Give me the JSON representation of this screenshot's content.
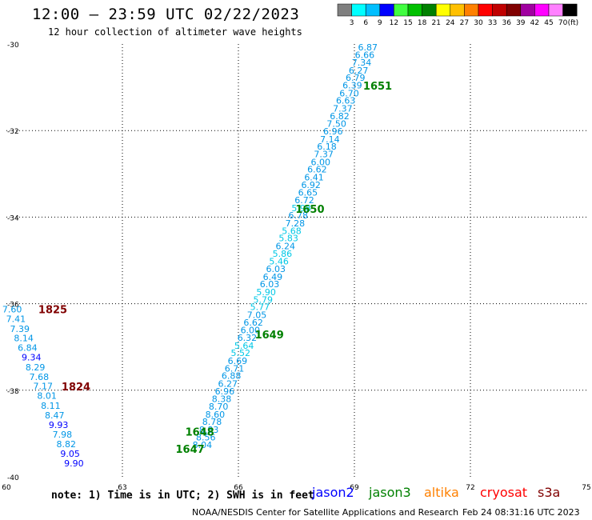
{
  "header": {
    "title": "12:00 – 23:59 UTC 02/22/2023",
    "subtitle": "12 hour collection of altimeter wave heights"
  },
  "colorbar": {
    "labels": [
      "3",
      "6",
      "9",
      "12",
      "15",
      "18",
      "21",
      "24",
      "27",
      "30",
      "33",
      "36",
      "39",
      "42",
      "45",
      "70"
    ],
    "unit": "(ft)",
    "colors": [
      "#7f7f7f",
      "#00ffff",
      "#00bfff",
      "#0000ff",
      "#40ff40",
      "#00c000",
      "#008000",
      "#ffff00",
      "#ffc000",
      "#ff8000",
      "#ff0000",
      "#c00000",
      "#800000",
      "#a000a0",
      "#ff00ff",
      "#ff80ff",
      "#000000"
    ]
  },
  "footer": {
    "note": "note: 1) Time is in UTC; 2) SWH is in feet",
    "credit": "NOAA/NESDIS Center for Satellite Applications and Research",
    "timestamp": "Feb 24 08:31:16 UTC 2023",
    "missions": [
      {
        "name": "jason2",
        "color": "#0000ff"
      },
      {
        "name": "jason3",
        "color": "#008000"
      },
      {
        "name": "altika",
        "color": "#ff8000"
      },
      {
        "name": "cryosat",
        "color": "#ff0000"
      },
      {
        "name": "s3a",
        "color": "#800000"
      }
    ]
  },
  "chart_data": {
    "type": "scatter",
    "xlim": [
      60,
      75
    ],
    "ylim": [
      -40,
      -30
    ],
    "xticks": [
      "60",
      "63",
      "66",
      "69",
      "72",
      "75"
    ],
    "yticks": [
      "-30",
      "-32",
      "-34",
      "-36",
      "-38",
      "-40"
    ],
    "grid": true,
    "series": [
      {
        "name": "jason3",
        "color": "#008000",
        "points": [
          {
            "x": 69.6,
            "y": -30.15,
            "v": "6.87"
          },
          {
            "x": 69.52,
            "y": -30.32,
            "v": "6.66"
          },
          {
            "x": 69.44,
            "y": -30.5,
            "v": "7.34"
          },
          {
            "x": 69.36,
            "y": -30.68,
            "v": "6.27"
          },
          {
            "x": 69.28,
            "y": -30.85,
            "v": "6.79"
          },
          {
            "x": 69.2,
            "y": -31.03,
            "v": "6.39"
          },
          {
            "x": 69.12,
            "y": -31.21,
            "v": "6.70"
          },
          {
            "x": 69.03,
            "y": -31.38,
            "v": "6.63"
          },
          {
            "x": 68.95,
            "y": -31.56,
            "v": "7.37"
          },
          {
            "x": 68.87,
            "y": -31.74,
            "v": "6.82"
          },
          {
            "x": 68.79,
            "y": -31.91,
            "v": "7.50"
          },
          {
            "x": 68.7,
            "y": -32.09,
            "v": "6.96"
          },
          {
            "x": 68.62,
            "y": -32.27,
            "v": "7.14"
          },
          {
            "x": 68.54,
            "y": -32.44,
            "v": "6.18"
          },
          {
            "x": 68.46,
            "y": -32.62,
            "v": "7.37"
          },
          {
            "x": 68.38,
            "y": -32.8,
            "v": "6.00"
          },
          {
            "x": 68.29,
            "y": -32.97,
            "v": "6.62"
          },
          {
            "x": 68.21,
            "y": -33.15,
            "v": "6.41"
          },
          {
            "x": 68.13,
            "y": -33.33,
            "v": "6.92"
          },
          {
            "x": 68.05,
            "y": -33.5,
            "v": "6.65"
          },
          {
            "x": 67.96,
            "y": -33.68,
            "v": "6.72"
          },
          {
            "x": 67.88,
            "y": -33.86,
            "v": "5.98"
          },
          {
            "x": 67.8,
            "y": -34.03,
            "v": "6.78"
          },
          {
            "x": 67.72,
            "y": -34.21,
            "v": "7.28"
          },
          {
            "x": 67.63,
            "y": -34.39,
            "v": "5.68"
          },
          {
            "x": 67.55,
            "y": -34.56,
            "v": "5.83"
          },
          {
            "x": 67.47,
            "y": -34.74,
            "v": "6.24"
          },
          {
            "x": 67.39,
            "y": -34.92,
            "v": "5.86"
          },
          {
            "x": 67.3,
            "y": -35.09,
            "v": "5.46"
          },
          {
            "x": 67.22,
            "y": -35.27,
            "v": "6.03"
          },
          {
            "x": 67.14,
            "y": -35.45,
            "v": "6.49"
          },
          {
            "x": 67.06,
            "y": -35.62,
            "v": "6.03"
          },
          {
            "x": 66.97,
            "y": -35.8,
            "v": "5.90"
          },
          {
            "x": 66.89,
            "y": -35.98,
            "v": "5.79"
          },
          {
            "x": 66.81,
            "y": -36.15,
            "v": "5.77"
          },
          {
            "x": 66.73,
            "y": -36.33,
            "v": "7.05"
          },
          {
            "x": 66.64,
            "y": -36.51,
            "v": "6.62"
          },
          {
            "x": 66.56,
            "y": -36.68,
            "v": "6.00"
          },
          {
            "x": 66.48,
            "y": -36.86,
            "v": "6.32"
          },
          {
            "x": 66.4,
            "y": -37.04,
            "v": "5.64"
          },
          {
            "x": 66.31,
            "y": -37.21,
            "v": "5.52"
          },
          {
            "x": 66.23,
            "y": -37.39,
            "v": "6.69"
          },
          {
            "x": 66.15,
            "y": -37.57,
            "v": "6.71"
          },
          {
            "x": 66.07,
            "y": -37.74,
            "v": "6.88"
          },
          {
            "x": 65.98,
            "y": -37.92,
            "v": "6.27"
          },
          {
            "x": 65.9,
            "y": -38.1,
            "v": "6.96"
          },
          {
            "x": 65.82,
            "y": -38.27,
            "v": "8.38"
          },
          {
            "x": 65.74,
            "y": -38.45,
            "v": "8.70"
          },
          {
            "x": 65.65,
            "y": -38.63,
            "v": "8.60"
          },
          {
            "x": 65.57,
            "y": -38.8,
            "v": "8.78"
          },
          {
            "x": 65.49,
            "y": -38.98,
            "v": "8.83"
          },
          {
            "x": 65.41,
            "y": -39.16,
            "v": "8.56"
          },
          {
            "x": 65.32,
            "y": -39.33,
            "v": "8.04"
          }
        ],
        "time_labels": [
          {
            "x": 69.6,
            "y": -31.05,
            "t": "1651"
          },
          {
            "x": 67.85,
            "y": -33.9,
            "t": "1650"
          },
          {
            "x": 66.8,
            "y": -36.8,
            "t": "1649"
          },
          {
            "x": 65.0,
            "y": -39.05,
            "t": "1648"
          },
          {
            "x": 64.75,
            "y": -39.45,
            "t": "1647"
          }
        ]
      },
      {
        "name": "s3a",
        "color": "#800000",
        "points": [
          {
            "x": 60.4,
            "y": -36.2,
            "v": "7.60"
          },
          {
            "x": 60.5,
            "y": -36.42,
            "v": "7.41"
          },
          {
            "x": 60.6,
            "y": -36.65,
            "v": "7.39"
          },
          {
            "x": 60.7,
            "y": -36.87,
            "v": "8.14"
          },
          {
            "x": 60.8,
            "y": -37.09,
            "v": "6.84"
          },
          {
            "x": 60.9,
            "y": -37.31,
            "v": "9.34"
          },
          {
            "x": 61.0,
            "y": -37.54,
            "v": "8.29"
          },
          {
            "x": 61.1,
            "y": -37.76,
            "v": "7.68"
          },
          {
            "x": 61.2,
            "y": -37.98,
            "v": "7.17"
          },
          {
            "x": 61.3,
            "y": -38.2,
            "v": "8.01"
          },
          {
            "x": 61.4,
            "y": -38.43,
            "v": "8.11"
          },
          {
            "x": 61.5,
            "y": -38.65,
            "v": "8.47"
          },
          {
            "x": 61.6,
            "y": -38.87,
            "v": "9.93"
          },
          {
            "x": 61.7,
            "y": -39.09,
            "v": "7.98"
          },
          {
            "x": 61.8,
            "y": -39.32,
            "v": "8.82"
          },
          {
            "x": 61.9,
            "y": -39.54,
            "v": "9.05"
          },
          {
            "x": 62.0,
            "y": -39.76,
            "v": "9.90"
          }
        ],
        "time_labels": [
          {
            "x": 61.2,
            "y": -36.22,
            "t": "1825"
          },
          {
            "x": 61.8,
            "y": -38.0,
            "t": "1824"
          }
        ]
      }
    ]
  }
}
